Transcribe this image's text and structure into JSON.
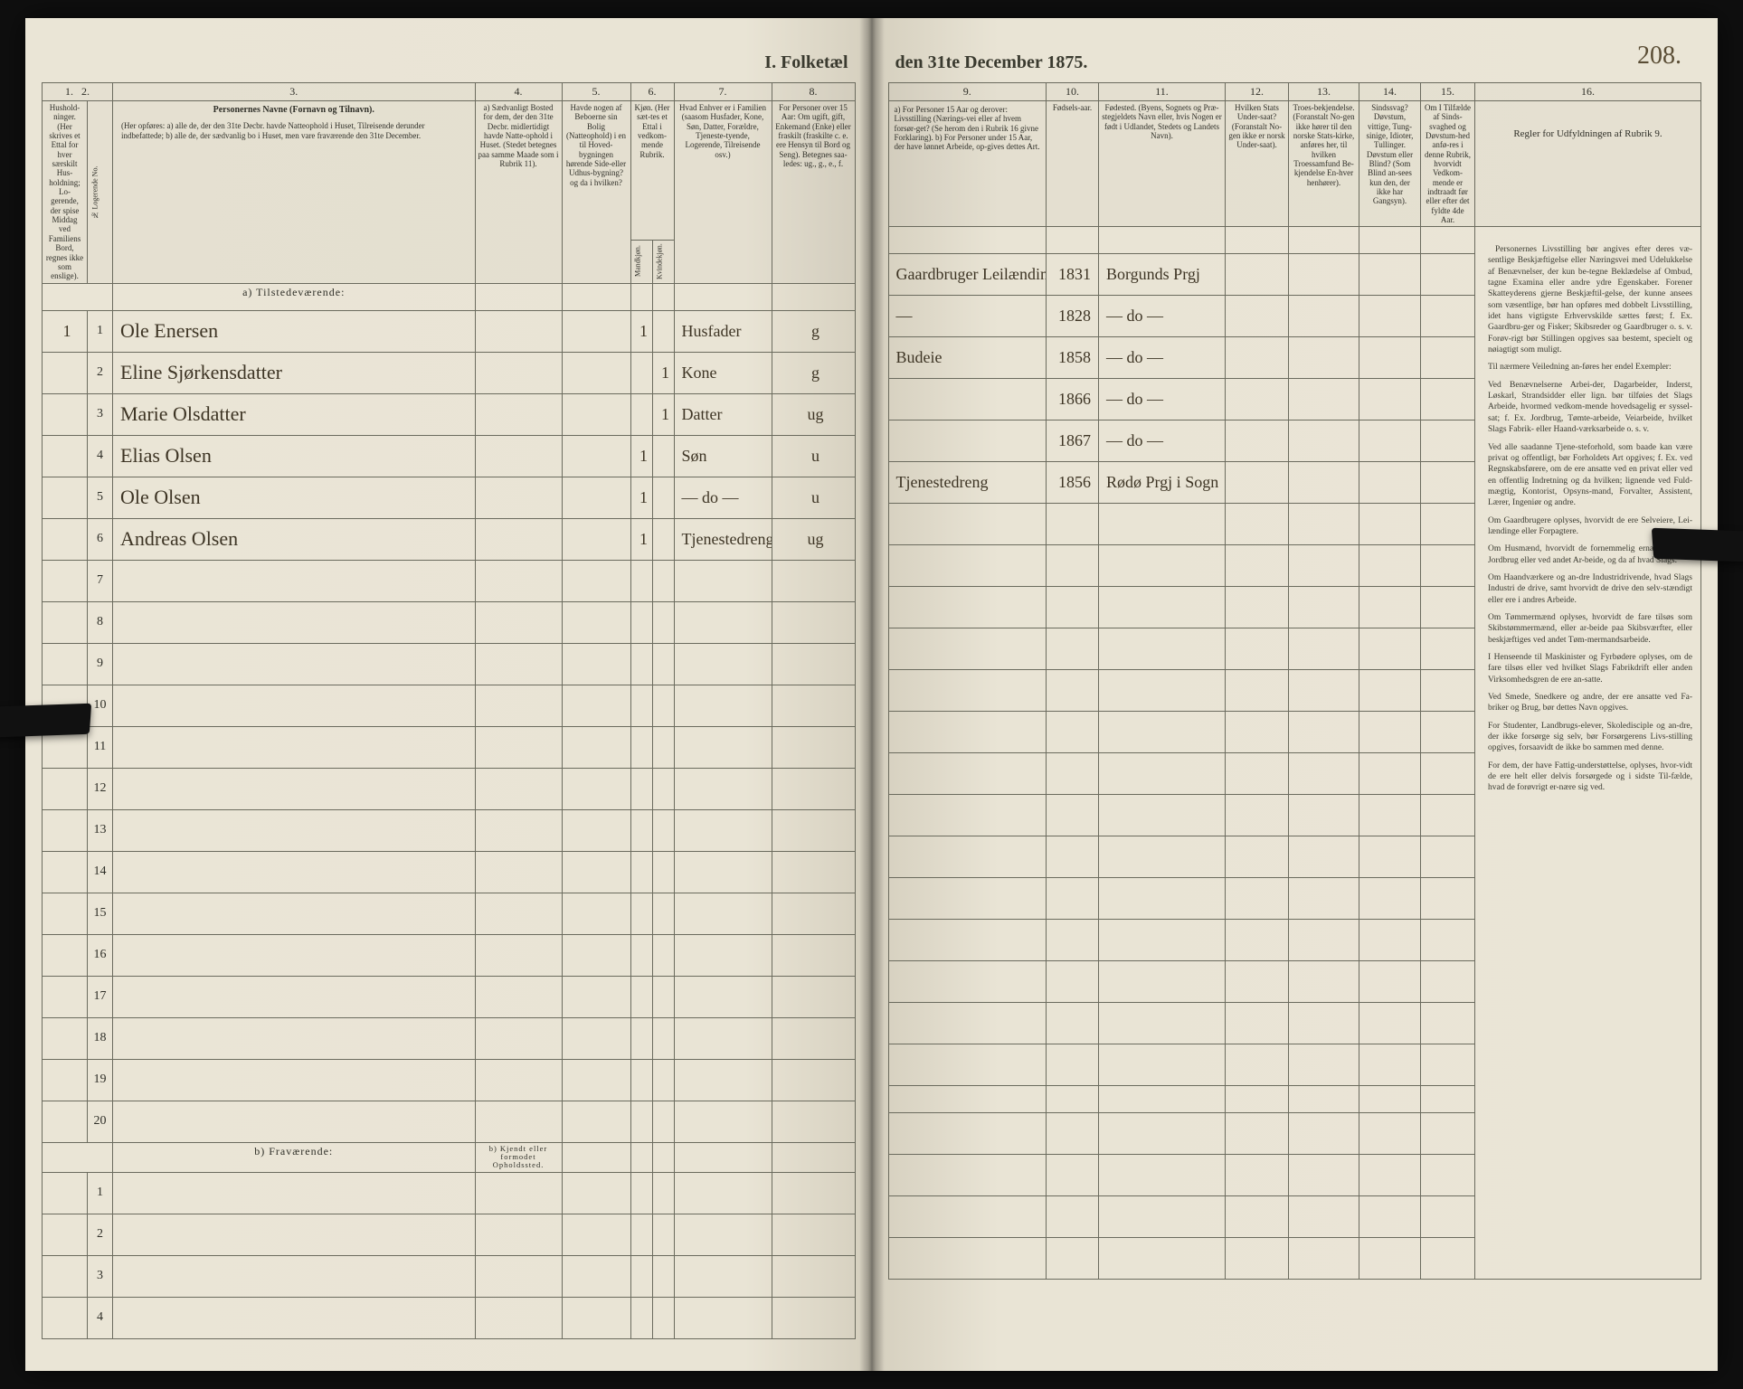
{
  "title_left": "I.  Folketæl",
  "title_right": "den 31te December 1875.",
  "page_number": "208.",
  "col_numbers_left": [
    "1.",
    "2.",
    "3.",
    "4.",
    "5.",
    "6.",
    "7.",
    "8."
  ],
  "col_numbers_right": [
    "9.",
    "10.",
    "11.",
    "12.",
    "13.",
    "14.",
    "15.",
    "16."
  ],
  "headers_left": {
    "c1": "Hushold-\nninger.\n(Her skrives et Ettal for hver særskilt Hus-holdning; Lo-gerende, der spise Middag ved Familiens Bord, regnes ikke som enslige).",
    "c2": "№ Logerende No.",
    "c3_title": "Personernes Navne (Fornavn og Tilnavn).",
    "c3_sub": "(Her opføres:\na) alle de, der den 31te Decbr. havde Natteophold i Huset, Tilreisende derunder indbefattede;\nb) alle de, der sædvanlig bo i Huset, men vare fraværende den 31te December.",
    "c4": "a) Sædvanligt Bosted for dem, der den 31te Decbr. midlertidigt havde Natte-ophold i Huset. (Stedet betegnes paa samme Maade som i Rubrik 11).",
    "c5": "Havde nogen af Beboerne sin Bolig (Natteophold) i en til Hoved-bygningen hørende Side-eller Udhus-bygning? og da i hvilken?",
    "c6": "Kjøn.\n(Her sæt-tes et Ettal i vedkom-mende Rubrik.",
    "c6a": "Mandkjøn.",
    "c6b": "Kvindekjøn.",
    "c7": "Hvad Enhver er i Familien\n(saasom Husfader, Kone, Søn, Datter, Forældre, Tjeneste-tyende, Logerende, Tilreisende osv.)",
    "c8": "For Personer over 15 Aar: Om ugift, gift, Enkemand (Enke) eller fraskilt (fraskilte c. e. ere Hensyn til Bord og Seng). Betegnes saa-ledes: ug., g., e., f."
  },
  "headers_right": {
    "c9": "a) For Personer 15 Aar og derover: Livsstilling (Nærings-vei eller af hvem forsør-get? (Se herom den i Rubrik 16 givne Forklaring).\nb) For Personer under 15 Aar, der have lønnet Arbeide, op-gives dettes Art.",
    "c10": "Fødsels-aar.",
    "c11": "Fødested.\n(Byens, Sognets og Præ-stegjeldets Navn eller, hvis Nogen er født i Udlandet, Stedets og Landets Navn).",
    "c12": "Hvilken Stats Under-saat?\n(Foranstalt No-gen ikke er norsk Under-saat).",
    "c13": "Troes-bekjendelse.\n(Foranstalt No-gen ikke hører til den norske Stats-kirke, anføres her, til hvilken Troessamfund Be-kjendelse En-hver henhører).",
    "c14": "Sindssvag?\nDøvstum, vittige, Tung-sinige, Idioter, Tullinger. Døvstum eller Blind?\n(Som Blind an-sees kun den, der ikke har Gangsyn).",
    "c15": "Om I Tilfælde af Sinds-svaghed og Døvstum-hed anfø-res i denne Rubrik, hvorvidt Vedkom-mende er indtraadt før eller efter det fyldte 4de Aar.",
    "c16_title": "Regler for Udfyldningen af Rubrik 9."
  },
  "section_a": "a)  Tilstedeværende:",
  "section_b": "b)  Fraværende:",
  "section_b_col4": "b) Kjendt eller formodet Opholdssted.",
  "rows": [
    {
      "hh": "1",
      "pn": "1",
      "name": "Ole Enersen",
      "c6a": "1",
      "c6b": "",
      "rel": "Husfader",
      "stat": "g",
      "occ": "Gaardbruger Leilænding",
      "year": "1831",
      "place": "Borgunds Prgj"
    },
    {
      "hh": "",
      "pn": "2",
      "name": "Eline Sjørkensdatter",
      "c6a": "",
      "c6b": "1",
      "rel": "Kone",
      "stat": "g",
      "occ": "—",
      "year": "1828",
      "place": "— do —"
    },
    {
      "hh": "",
      "pn": "3",
      "name": "Marie Olsdatter",
      "c6a": "",
      "c6b": "1",
      "rel": "Datter",
      "stat": "ug",
      "occ": "Budeie",
      "year": "1858",
      "place": "— do —"
    },
    {
      "hh": "",
      "pn": "4",
      "name": "Elias Olsen",
      "c6a": "1",
      "c6b": "",
      "rel": "Søn",
      "stat": "u",
      "occ": "",
      "year": "1866",
      "place": "— do —"
    },
    {
      "hh": "",
      "pn": "5",
      "name": "Ole Olsen",
      "c6a": "1",
      "c6b": "",
      "rel": "— do —",
      "stat": "u",
      "occ": "",
      "year": "1867",
      "place": "— do —"
    },
    {
      "hh": "",
      "pn": "6",
      "name": "Andreas Olsen",
      "c6a": "1",
      "c6b": "",
      "rel": "Tjenestedreng",
      "stat": "ug",
      "occ": "Tjenestedreng",
      "year": "1856",
      "place": "Rødø Prgj i Sogn"
    }
  ],
  "blank_rows_a": [
    "7",
    "8",
    "9",
    "10",
    "11",
    "12",
    "13",
    "14",
    "15",
    "16",
    "17",
    "18",
    "19",
    "20"
  ],
  "blank_rows_b": [
    "1",
    "2",
    "3",
    "4"
  ],
  "instructions": [
    "Personernes Livsstilling bør angives efter deres væ-sentlige Beskjæftigelse eller Næringsvei med Udelukkelse af Benævnelser, der kun be-tegne Beklædelse af Ombud, tagne Examina eller andre ydre Egenskaber. Forener Skatteyderens gjerne Beskjæftil-gelse, der kunne ansees som væsentlige, bør han opføres med dobbelt Livsstilling, idet hans vigtigste Erhvervskilde sættes først; f. Ex. Gaardbru-ger og Fisker; Skibsreder og Gaardbruger o. s. v. Forøv-rigt bør Stillingen opgives saa bestemt, specielt og nøiagtigt som muligt.",
    "Til nærmere Veiledning an-føres her endel Exempler:",
    "Ved Benævnelserne Arbei-der, Dagarbeider, Inderst, Løskarl, Strandsidder eller lign. bør tilføies det Slags Arbeide, hvormed vedkom-mende hovedsagelig er syssel-sat; f. Ex. Jordbrug, Tømte-arbeide, Veiarbeide, hvilket Slags Fabrik- eller Haand-værksarbeide o. s. v.",
    "Ved alle saadanne Tjene-steforhold, som baade kan være privat og offentligt, bør Forholdets Art opgives; f. Ex. ved Regnskabsførere, om de ere ansatte ved en privat eller ved en offentlig Indretning og da hvilken; lignende ved Fuld-mægtig, Kontorist, Opsyns-mand, Forvalter, Assistent, Lærer, Ingeniør og andre.",
    "Om Gaardbrugere oplyses, hvorvidt de ere Selveiere, Lei-lændinge eller Forpagtere.",
    "Om Husmænd, hvorvidt de fornemmelig ernære sig ved Jordbrug eller ved andet Ar-beide, og da af hvad Slags.",
    "Om Haandværkere og an-dre Industridrivende, hvad Slags Industri de drive, samt hvorvidt de drive den selv-stændigt eller ere i andres Arbeide.",
    "Om Tømmermænd oplyses, hvorvidt de fare tilsøs som Skibstømmermænd, eller ar-beide paa Skibsværfter, eller beskjæftiges ved andet Tøm-mermandsarbeide.",
    "I Henseende til Maskinister og Fyrbødere oplyses, om de fare tilsøs eller ved hvilket Slags Fabrikdrift eller anden Virksomhedsgren de ere an-satte.",
    "Ved Smede, Snedkere og andre, der ere ansatte ved Fa-briker og Brug, bør dettes Navn opgives.",
    "For Studenter, Landbrugs-elever, Skoledisciple og an-dre, der ikke forsørge sig selv, bør Forsørgerens Livs-stilling opgives, forsaavidt de ikke bo sammen med denne.",
    "For dem, der have Fattig-understøttelse, oplyses, hvor-vidt de ere helt eller delvis forsørgede og i sidste Til-fælde, hvad de forøvrigt er-nære sig ved."
  ]
}
